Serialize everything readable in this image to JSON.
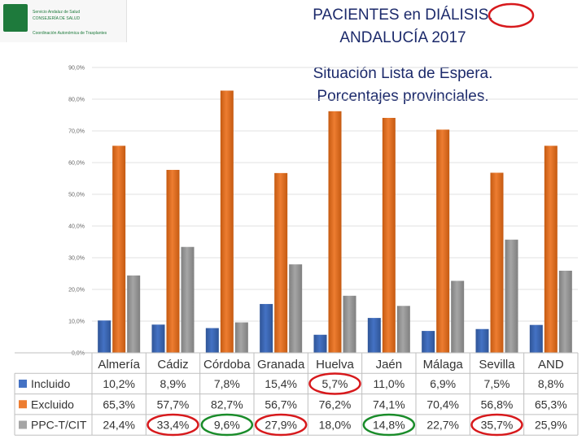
{
  "header": {
    "title_line1": "PACIENTES en DIÁLISIS.",
    "title_line2": "ANDALUCÍA 2017",
    "subtitle_line1": "Situación Lista de Espera.",
    "subtitle_line2": "Porcentajes provinciales."
  },
  "logo": {
    "line1": "Servicio Andaluz de Salud",
    "line2": "CONSEJERÍA DE SALUD",
    "line3": "Coordinación Autonómica de Trasplantes"
  },
  "colors": {
    "incluido": "#4472c4",
    "excluido": "#ed7d31",
    "ppc": "#a5a5a5",
    "circle_red": "#d7191c",
    "circle_green": "#1a8c2a"
  },
  "chart_data": {
    "type": "bar",
    "title": "",
    "xlabel": "",
    "ylabel": "",
    "ylim": [
      0,
      90
    ],
    "y_ticks": [
      "0,0%",
      "10,0%",
      "20,0%",
      "30,0%",
      "40,0%",
      "50,0%",
      "60,0%",
      "70,0%",
      "80,0%",
      "90,0%"
    ],
    "grid": true,
    "categories": [
      "Almería",
      "Cádiz",
      "Córdoba",
      "Granada",
      "Huelva",
      "Jaén",
      "Málaga",
      "Sevilla",
      "AND"
    ],
    "series": [
      {
        "name": "Incluido",
        "values": [
          10.2,
          8.9,
          7.8,
          15.4,
          5.7,
          11.0,
          6.9,
          7.5,
          8.8
        ],
        "labels": [
          "10,2%",
          "8,9%",
          "7,8%",
          "15,4%",
          "5,7%",
          "11,0%",
          "6,9%",
          "7,5%",
          "8,8%"
        ]
      },
      {
        "name": "Excluido",
        "values": [
          65.3,
          57.7,
          82.7,
          56.7,
          76.2,
          74.1,
          70.4,
          56.8,
          65.3
        ],
        "labels": [
          "65,3%",
          "57,7%",
          "82,7%",
          "56,7%",
          "76,2%",
          "74,1%",
          "70,4%",
          "56,8%",
          "65,3%"
        ]
      },
      {
        "name": "PPC-T/CIT",
        "values": [
          24.4,
          33.4,
          9.6,
          27.9,
          18.0,
          14.8,
          22.7,
          35.7,
          25.9
        ],
        "labels": [
          "24,4%",
          "33,4%",
          "9,6%",
          "27,9%",
          "18,0%",
          "14,8%",
          "22,7%",
          "35,7%",
          "25,9%"
        ]
      }
    ],
    "annotations": [
      {
        "type": "circle",
        "color": "red",
        "target": "title",
        "text": "S."
      },
      {
        "type": "circle",
        "color": "red",
        "series": "Incluido",
        "category": "Huelva"
      },
      {
        "type": "circle",
        "color": "red",
        "series": "PPC-T/CIT",
        "category": "Cádiz"
      },
      {
        "type": "circle",
        "color": "green",
        "series": "PPC-T/CIT",
        "category": "Córdoba"
      },
      {
        "type": "circle",
        "color": "red",
        "series": "PPC-T/CIT",
        "category": "Granada"
      },
      {
        "type": "circle",
        "color": "green",
        "series": "PPC-T/CIT",
        "category": "Jaén"
      },
      {
        "type": "circle",
        "color": "red",
        "series": "PPC-T/CIT",
        "category": "Sevilla"
      }
    ]
  }
}
